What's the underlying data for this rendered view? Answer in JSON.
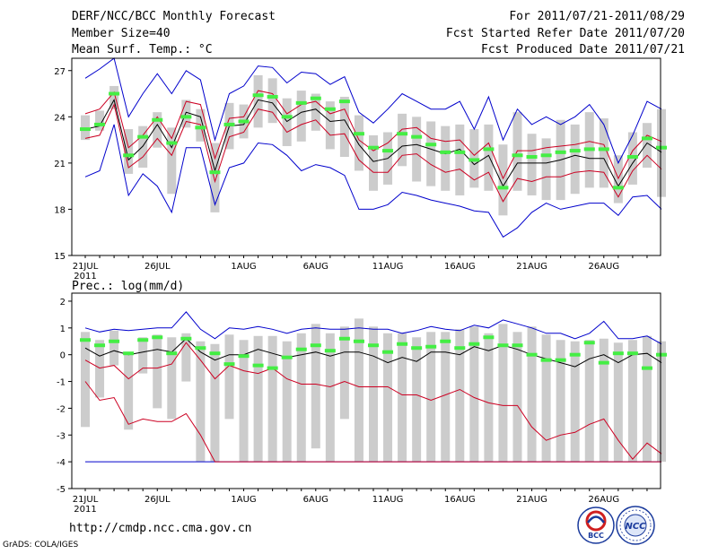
{
  "header": {
    "title": "DERF/NCC/BCC Monthly Forecast",
    "member_size": "Member Size=40",
    "variable": "Mean Surf. Temp.: °C",
    "period": "For 2011/07/21-2011/08/29",
    "start_date": "Fcst Started Refer Date 2011/07/20",
    "produced_date": "Fcst Produced Date 2011/07/21"
  },
  "footer": {
    "url": "http://cmdp.ncc.cma.gov.cn",
    "credit": "GrADS: COLA/IGES",
    "logo_bcc": "BCC",
    "logo_ncc": "NCC"
  },
  "colors": {
    "envelope": "#0000cc",
    "spread": "#cc0022",
    "mean": "#000000",
    "box": "#cccccc",
    "obs": "#44ee44"
  },
  "chart_data": [
    {
      "type": "line",
      "title": "Mean Surf. Temp.: °C",
      "ylim": [
        15,
        27.8
      ],
      "yticks": [
        15,
        18,
        21,
        24,
        27
      ],
      "xticks": [
        {
          "day": 0,
          "label": "21JUL"
        },
        {
          "day": 5,
          "label": "26JUL"
        },
        {
          "day": 11,
          "label": "1AUG"
        },
        {
          "day": 16,
          "label": "6AUG"
        },
        {
          "day": 21,
          "label": "11AUG"
        },
        {
          "day": 26,
          "label": "16AUG"
        },
        {
          "day": 31,
          "label": "21AUG"
        },
        {
          "day": 36,
          "label": "26AUG"
        }
      ],
      "year_label": "2011",
      "days": 40,
      "series": [
        {
          "name": "max",
          "values": [
            26.5,
            27.1,
            27.8,
            24.0,
            25.5,
            26.8,
            25.5,
            27.0,
            26.4,
            22.5,
            25.5,
            26.0,
            27.3,
            27.2,
            26.2,
            26.9,
            26.8,
            26.1,
            26.6,
            24.3,
            23.6,
            24.5,
            25.5,
            25.0,
            24.5,
            24.5,
            25.0,
            23.2,
            25.3,
            22.5,
            24.5,
            23.5,
            24.0,
            23.5,
            24.0,
            24.8,
            23.5,
            21.0,
            22.8,
            25.0,
            24.5
          ]
        },
        {
          "name": "upper",
          "values": [
            24.2,
            24.5,
            25.6,
            22.0,
            22.8,
            24.0,
            22.6,
            25.0,
            24.8,
            21.3,
            23.9,
            24.0,
            25.7,
            25.5,
            24.2,
            24.8,
            25.0,
            24.2,
            24.5,
            22.5,
            21.8,
            22.3,
            23.2,
            23.3,
            22.6,
            22.4,
            22.5,
            21.5,
            22.3,
            20.0,
            21.8,
            21.8,
            22.0,
            22.1,
            22.2,
            22.4,
            22.2,
            20.0,
            21.8,
            22.8,
            22.4
          ]
        },
        {
          "name": "mean",
          "values": [
            23.2,
            23.4,
            25.1,
            21.2,
            22.1,
            23.5,
            22.0,
            24.3,
            24.0,
            20.5,
            23.4,
            23.5,
            25.1,
            24.9,
            23.7,
            24.3,
            24.5,
            23.7,
            23.8,
            22.2,
            21.1,
            21.3,
            22.1,
            22.2,
            21.9,
            21.6,
            21.9,
            20.9,
            21.5,
            19.5,
            21.0,
            21.0,
            21.0,
            21.2,
            21.5,
            21.3,
            21.3,
            19.5,
            21.0,
            22.3,
            21.7
          ]
        },
        {
          "name": "lower",
          "values": [
            22.6,
            22.8,
            24.8,
            20.7,
            21.4,
            22.6,
            21.5,
            23.7,
            23.5,
            19.8,
            22.7,
            23.0,
            24.5,
            24.3,
            23.0,
            23.5,
            23.8,
            22.8,
            22.9,
            21.2,
            20.4,
            20.4,
            21.5,
            21.6,
            20.9,
            20.4,
            20.6,
            19.9,
            20.4,
            18.5,
            20.0,
            19.8,
            20.1,
            20.1,
            20.4,
            20.5,
            20.4,
            18.8,
            20.5,
            21.5,
            20.6
          ]
        },
        {
          "name": "min",
          "values": [
            20.1,
            20.5,
            23.5,
            18.9,
            20.3,
            19.5,
            17.8,
            22.0,
            22.0,
            18.3,
            20.7,
            21.0,
            22.3,
            22.2,
            21.5,
            20.5,
            20.9,
            20.7,
            20.2,
            18.0,
            18.0,
            18.3,
            19.1,
            18.9,
            18.6,
            18.4,
            18.2,
            17.9,
            17.8,
            16.2,
            16.8,
            17.8,
            18.4,
            18.0,
            18.2,
            18.4,
            18.4,
            17.6,
            18.8,
            18.9,
            18.0
          ]
        },
        {
          "name": "box_high",
          "values": [
            24.1,
            24.4,
            26.0,
            23.2,
            23.4,
            24.3,
            23.3,
            25.1,
            24.5,
            22.3,
            24.9,
            24.8,
            26.7,
            26.5,
            25.2,
            25.7,
            25.5,
            25.0,
            25.3,
            24.1,
            22.8,
            23.0,
            24.2,
            24.0,
            23.7,
            23.4,
            23.5,
            23.2,
            23.5,
            22.2,
            24.3,
            22.9,
            22.6,
            23.8,
            23.5,
            24.3,
            23.9,
            21.5,
            23.0,
            23.6,
            24.5
          ]
        },
        {
          "name": "box_low",
          "values": [
            22.5,
            23.1,
            24.5,
            20.3,
            20.7,
            22.0,
            19.0,
            23.3,
            22.4,
            17.8,
            21.9,
            22.6,
            23.3,
            23.6,
            22.1,
            22.4,
            23.1,
            21.9,
            21.4,
            20.5,
            19.2,
            19.6,
            20.8,
            19.8,
            19.5,
            19.2,
            18.9,
            19.4,
            19.2,
            17.6,
            19.2,
            18.9,
            18.6,
            18.6,
            19.0,
            19.4,
            19.4,
            18.4,
            19.6,
            20.7,
            18.8
          ]
        },
        {
          "name": "observed",
          "values": [
            23.2,
            23.5,
            25.5,
            21.5,
            22.7,
            23.8,
            22.3,
            24.0,
            23.3,
            20.4,
            23.5,
            23.7,
            25.4,
            25.3,
            24.0,
            24.9,
            25.2,
            24.5,
            25.0,
            22.9,
            22.0,
            21.8,
            22.9,
            22.7,
            22.2,
            21.7,
            21.7,
            21.2,
            21.9,
            19.4,
            21.5,
            21.4,
            21.5,
            21.7,
            21.8,
            21.9,
            21.9,
            19.4,
            21.4,
            22.6,
            22.0
          ]
        }
      ]
    },
    {
      "type": "line",
      "title": "Prec.: log(mm/d)",
      "ylim": [
        -5,
        2.3
      ],
      "yticks": [
        -5,
        -4,
        -3,
        -2,
        -1,
        0,
        1,
        2
      ],
      "xticks": [
        {
          "day": 0,
          "label": "21JUL"
        },
        {
          "day": 5,
          "label": "26JUL"
        },
        {
          "day": 11,
          "label": "1AUG"
        },
        {
          "day": 16,
          "label": "6AUG"
        },
        {
          "day": 21,
          "label": "11AUG"
        },
        {
          "day": 26,
          "label": "16AUG"
        },
        {
          "day": 31,
          "label": "21AUG"
        },
        {
          "day": 36,
          "label": "26AUG"
        }
      ],
      "year_label": "2011",
      "days": 40,
      "series": [
        {
          "name": "max",
          "values": [
            1.0,
            0.85,
            0.95,
            0.9,
            0.95,
            1.0,
            1.0,
            1.6,
            0.95,
            0.6,
            1.0,
            0.95,
            1.05,
            0.95,
            0.8,
            0.95,
            1.0,
            0.95,
            0.95,
            1.0,
            0.95,
            0.95,
            0.8,
            0.9,
            1.05,
            0.95,
            0.9,
            1.1,
            1.0,
            1.3,
            1.15,
            1.0,
            0.8,
            0.8,
            0.6,
            0.8,
            1.25,
            0.6,
            0.6,
            0.7,
            0.4
          ]
        },
        {
          "name": "mean",
          "values": [
            0.25,
            -0.05,
            0.15,
            0.0,
            0.1,
            0.2,
            0.1,
            0.6,
            0.1,
            -0.2,
            0.0,
            0.0,
            0.2,
            0.05,
            -0.1,
            0.0,
            0.1,
            -0.05,
            0.1,
            0.1,
            -0.05,
            -0.3,
            -0.1,
            -0.25,
            0.1,
            0.1,
            0.0,
            0.3,
            0.15,
            0.35,
            0.2,
            0.0,
            -0.15,
            -0.3,
            -0.45,
            -0.15,
            0.0,
            -0.3,
            0.0,
            0.05,
            -0.3
          ]
        },
        {
          "name": "spread_low",
          "values": [
            -1.0,
            -1.7,
            -1.6,
            -2.6,
            -2.4,
            -2.5,
            -2.5,
            -2.2,
            -3.0,
            -4.0,
            -4.0,
            -4.0,
            -4.0,
            -4.0,
            -4.0,
            -4.0,
            -4.0,
            -4.0,
            -4.0,
            -4.0,
            -4.0,
            -4.0,
            -4.0,
            -4.0,
            -4.0,
            -4.0,
            -4.0,
            -4.0,
            -4.0,
            -4.0,
            -4.0,
            -4.0,
            -4.0,
            -4.0,
            -4.0,
            -4.0,
            -4.0,
            -4.0,
            -4.0,
            -4.0,
            -4.0
          ]
        },
        {
          "name": "spread_high",
          "values": [
            -0.2,
            -0.5,
            -0.4,
            -0.9,
            -0.5,
            -0.5,
            -0.35,
            0.45,
            -0.2,
            -0.9,
            -0.4,
            -0.6,
            -0.7,
            -0.5,
            -0.9,
            -1.1,
            -1.1,
            -1.2,
            -1.0,
            -1.2,
            -1.2,
            -1.2,
            -1.5,
            -1.5,
            -1.7,
            -1.5,
            -1.3,
            -1.6,
            -1.8,
            -1.9,
            -1.9,
            -2.7,
            -3.2,
            -3.0,
            -2.9,
            -2.6,
            -2.4,
            -3.2,
            -3.9,
            -3.3,
            -3.7
          ]
        },
        {
          "name": "floor",
          "values": [
            -4.0,
            -4.0,
            -4.0,
            -4.0,
            -4.0,
            -4.0,
            -4.0,
            -4.0,
            -4.0,
            -4.0,
            -4.0,
            -4.0,
            -4.0,
            -4.0,
            -4.0,
            -4.0,
            -4.0,
            -4.0,
            -4.0,
            -4.0,
            -4.0,
            -4.0,
            -4.0,
            -4.0,
            -4.0,
            -4.0,
            -4.0,
            -4.0,
            -4.0,
            -4.0,
            -4.0,
            -4.0,
            -4.0,
            -4.0,
            -4.0,
            -4.0,
            -4.0,
            -4.0,
            -4.0,
            -4.0,
            -4.0
          ]
        },
        {
          "name": "box_high",
          "values": [
            0.85,
            0.55,
            0.9,
            0.0,
            0.65,
            0.75,
            0.65,
            0.8,
            0.5,
            0.4,
            0.75,
            0.55,
            0.7,
            0.7,
            0.5,
            0.8,
            1.15,
            0.8,
            1.05,
            1.35,
            1.05,
            0.8,
            0.8,
            0.65,
            0.85,
            0.85,
            0.95,
            1.05,
            0.8,
            1.15,
            0.85,
            1.05,
            0.75,
            0.55,
            0.5,
            0.55,
            0.6,
            0.45,
            0.55,
            0.7,
            0.5
          ]
        },
        {
          "name": "box_low",
          "values": [
            -2.7,
            -1.6,
            -0.4,
            -2.8,
            -0.7,
            -2.0,
            -2.4,
            -1.0,
            -4.0,
            -4.0,
            -2.4,
            -4.0,
            -4.0,
            -4.0,
            -4.0,
            -4.0,
            -3.5,
            -4.0,
            -2.4,
            -4.0,
            -4.0,
            -4.0,
            -4.0,
            -4.0,
            -4.0,
            -4.0,
            -4.0,
            -4.0,
            -4.0,
            -4.0,
            -4.0,
            -4.0,
            -4.0,
            -4.0,
            -4.0,
            -4.0,
            -4.0,
            -4.0,
            -4.0,
            -4.0,
            -4.0
          ]
        },
        {
          "name": "observed",
          "values": [
            0.55,
            0.35,
            0.5,
            0.05,
            0.55,
            0.65,
            0.05,
            0.6,
            0.25,
            0.05,
            -0.35,
            -0.05,
            -0.4,
            -0.5,
            -0.1,
            0.2,
            0.35,
            0.15,
            0.6,
            0.5,
            0.35,
            0.1,
            0.4,
            0.25,
            0.3,
            0.5,
            0.25,
            0.4,
            0.65,
            0.35,
            0.35,
            0.0,
            -0.2,
            -0.2,
            0.0,
            0.45,
            -0.3,
            0.05,
            0.05,
            -0.5,
            0.0
          ]
        }
      ]
    }
  ]
}
